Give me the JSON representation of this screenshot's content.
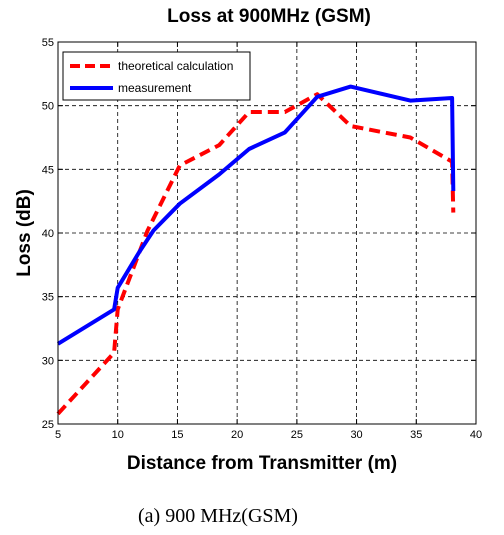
{
  "chart_data": {
    "type": "line",
    "title": "Loss at 900MHz (GSM)",
    "xlabel": "Distance from Transmitter (m)",
    "ylabel": "Loss (dB)",
    "xlim": [
      5,
      40
    ],
    "ylim": [
      25,
      55
    ],
    "xticks": [
      5,
      10,
      15,
      20,
      25,
      30,
      35,
      40
    ],
    "yticks": [
      25,
      30,
      35,
      40,
      45,
      50,
      55
    ],
    "grid": true,
    "legend_position": "top-left",
    "series": [
      {
        "name": "theoretical calculation",
        "color": "#ff0000",
        "style": "dashed",
        "x": [
          5,
          9.7,
          10,
          12.5,
          15.2,
          18.5,
          21,
          24,
          26.7,
          29.5,
          34.5,
          38,
          38.1
        ],
        "y": [
          25.8,
          30.6,
          34,
          40.2,
          45.3,
          46.9,
          49.5,
          49.5,
          50.9,
          48.4,
          47.5,
          45.6,
          41.6
        ]
      },
      {
        "name": "measurement",
        "color": "#0000ff",
        "style": "solid",
        "x": [
          5,
          9.7,
          10,
          11.8,
          13,
          15.2,
          18.5,
          21,
          24,
          26.7,
          29.5,
          34.5,
          38,
          38.1
        ],
        "y": [
          31.3,
          34,
          35.7,
          38.5,
          40.2,
          42.3,
          44.6,
          46.6,
          47.9,
          50.7,
          51.5,
          50.4,
          50.6,
          43.3
        ]
      }
    ]
  },
  "caption": "(a) 900 MHz(GSM)"
}
